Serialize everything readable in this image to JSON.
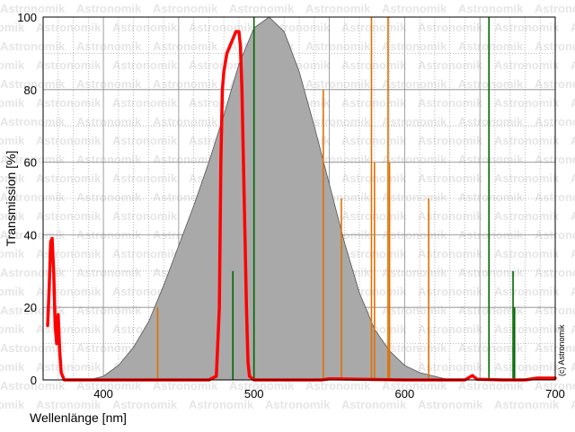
{
  "chart_data": {
    "type": "line",
    "xlabel": "Wellenlänge [nm]",
    "ylabel": "Transmission [%]",
    "xlim": [
      360,
      700
    ],
    "ylim": [
      0,
      100
    ],
    "x_ticks": [
      400,
      500,
      600,
      700
    ],
    "y_ticks": [
      0,
      20,
      40,
      60,
      80,
      100
    ],
    "grid": "dotted minor every 10 nm, solid major every 50 nm and 20 %",
    "watermark": "Astronomik",
    "copyright": "(c) Astronomik",
    "series": [
      {
        "kind": "area",
        "color": "#a9a9a9",
        "points": [
          [
            360,
            0
          ],
          [
            390,
            0
          ],
          [
            400,
            1
          ],
          [
            410,
            4
          ],
          [
            420,
            9
          ],
          [
            430,
            16
          ],
          [
            440,
            26
          ],
          [
            450,
            37
          ],
          [
            460,
            48
          ],
          [
            470,
            60
          ],
          [
            480,
            73
          ],
          [
            490,
            87
          ],
          [
            500,
            97
          ],
          [
            510,
            100
          ],
          [
            520,
            96
          ],
          [
            530,
            85
          ],
          [
            540,
            70
          ],
          [
            550,
            54
          ],
          [
            560,
            38
          ],
          [
            570,
            24
          ],
          [
            580,
            14
          ],
          [
            590,
            8
          ],
          [
            600,
            4
          ],
          [
            610,
            2
          ],
          [
            620,
            1
          ],
          [
            630,
            0
          ],
          [
            700,
            0
          ]
        ]
      },
      {
        "kind": "line",
        "color": "#ff0000",
        "points": [
          [
            363,
            15
          ],
          [
            364,
            25
          ],
          [
            365,
            38
          ],
          [
            366,
            39
          ],
          [
            367,
            30
          ],
          [
            368,
            15
          ],
          [
            369,
            10
          ],
          [
            370,
            18
          ],
          [
            371,
            8
          ],
          [
            372,
            2
          ],
          [
            374,
            0
          ],
          [
            470,
            0
          ],
          [
            475,
            1
          ],
          [
            477,
            20
          ],
          [
            478,
            60
          ],
          [
            479,
            80
          ],
          [
            480,
            85
          ],
          [
            482,
            90
          ],
          [
            484,
            92
          ],
          [
            486,
            94
          ],
          [
            488,
            96
          ],
          [
            490,
            96
          ],
          [
            491,
            92
          ],
          [
            492,
            80
          ],
          [
            493,
            60
          ],
          [
            494,
            40
          ],
          [
            495,
            20
          ],
          [
            496,
            5
          ],
          [
            497,
            1
          ],
          [
            500,
            0
          ],
          [
            545,
            0
          ],
          [
            550,
            0.3
          ],
          [
            600,
            0
          ],
          [
            640,
            0
          ],
          [
            645,
            1.2
          ],
          [
            648,
            0.2
          ],
          [
            665,
            0
          ],
          [
            680,
            0
          ],
          [
            688,
            0.5
          ],
          [
            700,
            0.5
          ]
        ]
      },
      {
        "kind": "emission-lines",
        "color": "#e07000",
        "lines": [
          [
            436,
            20
          ],
          [
            546,
            80
          ],
          [
            558,
            50
          ],
          [
            578,
            100
          ],
          [
            580,
            60
          ],
          [
            589,
            100
          ],
          [
            590,
            60
          ],
          [
            616,
            50
          ]
        ]
      },
      {
        "kind": "emission-lines",
        "color": "#006600",
        "lines": [
          [
            486,
            30
          ],
          [
            500,
            100
          ],
          [
            656,
            100
          ],
          [
            672,
            30
          ],
          [
            673,
            20
          ]
        ]
      }
    ]
  }
}
